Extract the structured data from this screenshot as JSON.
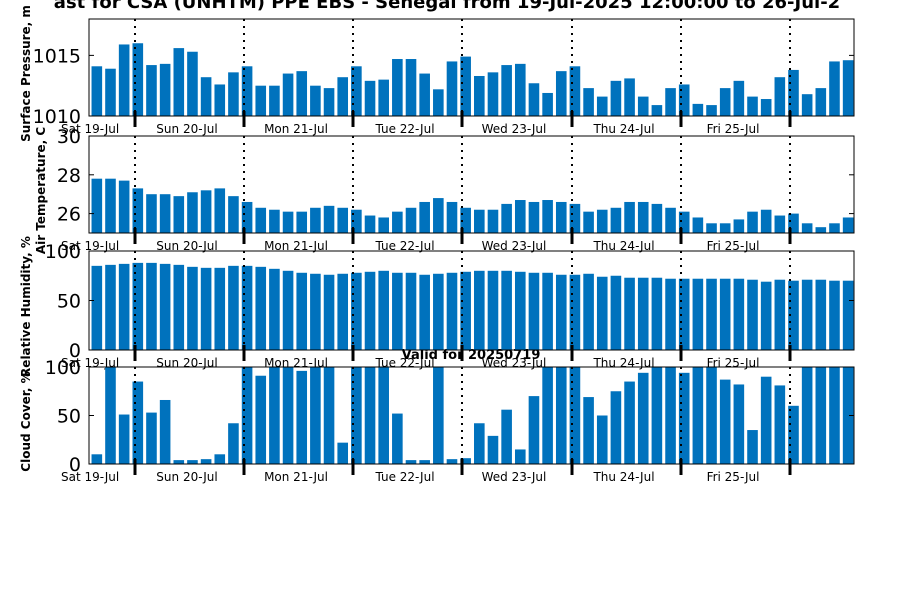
{
  "figure": {
    "title": "ast for CSA (UNHTM) PPE EBS - Senegal from 19-Jul-2025 12:00:00 to 26-Jul-2",
    "subtitle": "Valid for 20250719"
  },
  "colors": {
    "bar": "#0072bd",
    "axis": "#000000",
    "background": "#ffffff"
  },
  "chart_data": [
    {
      "type": "bar",
      "ylabel": "Surface Pressure, m",
      "ylim": [
        1010,
        1018
      ],
      "yticks": [
        1010,
        1015
      ],
      "xticks": [
        "Sat 19-Jul",
        "Sun 20-Jul",
        "Mon 21-Jul",
        "Tue 22-Jul",
        "Wed 23-Jul",
        "Thu 24-Jul",
        "Fri 25-Jul"
      ],
      "values": [
        1014.1,
        1013.9,
        1015.9,
        1016.0,
        1014.2,
        1014.3,
        1015.6,
        1015.3,
        1013.2,
        1012.6,
        1013.6,
        1014.1,
        1012.5,
        1012.5,
        1013.5,
        1013.7,
        1012.5,
        1012.3,
        1013.2,
        1014.1,
        1012.9,
        1013.0,
        1014.7,
        1014.7,
        1013.5,
        1012.2,
        1014.5,
        1014.9,
        1013.3,
        1013.6,
        1014.2,
        1014.3,
        1012.7,
        1011.9,
        1013.7,
        1014.1,
        1012.3,
        1011.6,
        1012.9,
        1013.1,
        1011.6,
        1010.9,
        1012.3,
        1012.6,
        1011.0,
        1010.9,
        1012.3,
        1012.9,
        1011.6,
        1011.4,
        1013.2,
        1013.8,
        1011.8,
        1012.3,
        1014.5,
        1014.6
      ]
    },
    {
      "type": "bar",
      "ylabel": "Air Temperature, C",
      "ylim": [
        25,
        30
      ],
      "yticks": [
        26,
        28,
        30
      ],
      "xticks": [
        "Sat 19-Jul",
        "Sun 20-Jul",
        "Mon 21-Jul",
        "Tue 22-Jul",
        "Wed 23-Jul",
        "Thu 24-Jul",
        "Fri 25-Jul"
      ],
      "values": [
        27.8,
        27.8,
        27.7,
        27.3,
        27.0,
        27.0,
        26.9,
        27.1,
        27.2,
        27.3,
        26.9,
        26.6,
        26.3,
        26.2,
        26.1,
        26.1,
        26.3,
        26.4,
        26.3,
        26.2,
        25.9,
        25.8,
        26.1,
        26.3,
        26.6,
        26.8,
        26.6,
        26.3,
        26.2,
        26.2,
        26.5,
        26.7,
        26.6,
        26.7,
        26.6,
        26.5,
        26.1,
        26.2,
        26.3,
        26.6,
        26.6,
        26.5,
        26.3,
        26.1,
        25.8,
        25.5,
        25.5,
        25.7,
        26.1,
        26.2,
        25.9,
        26.0,
        25.5,
        25.3,
        25.5,
        25.8
      ]
    },
    {
      "type": "bar",
      "ylabel": "Relative Humidity, %",
      "ylim": [
        0,
        100
      ],
      "yticks": [
        0,
        50,
        100
      ],
      "xticks": [
        "Sat 19-Jul",
        "Sun 20-Jul",
        "Mon 21-Jul",
        "Tue 22-Jul",
        "Wed 23-Jul",
        "Thu 24-Jul",
        "Fri 25-Jul"
      ],
      "values": [
        85,
        86,
        87,
        88,
        88,
        87,
        86,
        84,
        83,
        83,
        85,
        85,
        84,
        82,
        80,
        78,
        77,
        76,
        77,
        78,
        79,
        80,
        78,
        78,
        76,
        77,
        78,
        79,
        80,
        80,
        80,
        79,
        78,
        78,
        76,
        76,
        77,
        74,
        75,
        73,
        73,
        73,
        72,
        72,
        72,
        72,
        72,
        72,
        71,
        69,
        71,
        70,
        71,
        71,
        70,
        70
      ]
    },
    {
      "type": "bar",
      "ylabel": "Cloud Cover, %",
      "ylim": [
        0,
        100
      ],
      "yticks": [
        0,
        50,
        100
      ],
      "xticks": [
        "Sat 19-Jul",
        "Sun 20-Jul",
        "Mon 21-Jul",
        "Tue 22-Jul",
        "Wed 23-Jul",
        "Thu 24-Jul",
        "Fri 25-Jul"
      ],
      "values": [
        10,
        100,
        51,
        85,
        53,
        66,
        4,
        4,
        5,
        10,
        42,
        100,
        91,
        100,
        100,
        96,
        100,
        100,
        22,
        100,
        100,
        100,
        52,
        4,
        4,
        100,
        5,
        6,
        42,
        29,
        56,
        15,
        70,
        100,
        100,
        100,
        69,
        50,
        75,
        85,
        94,
        100,
        100,
        94,
        100,
        100,
        87,
        82,
        35,
        90,
        81,
        60,
        100,
        100,
        100,
        100
      ]
    }
  ]
}
